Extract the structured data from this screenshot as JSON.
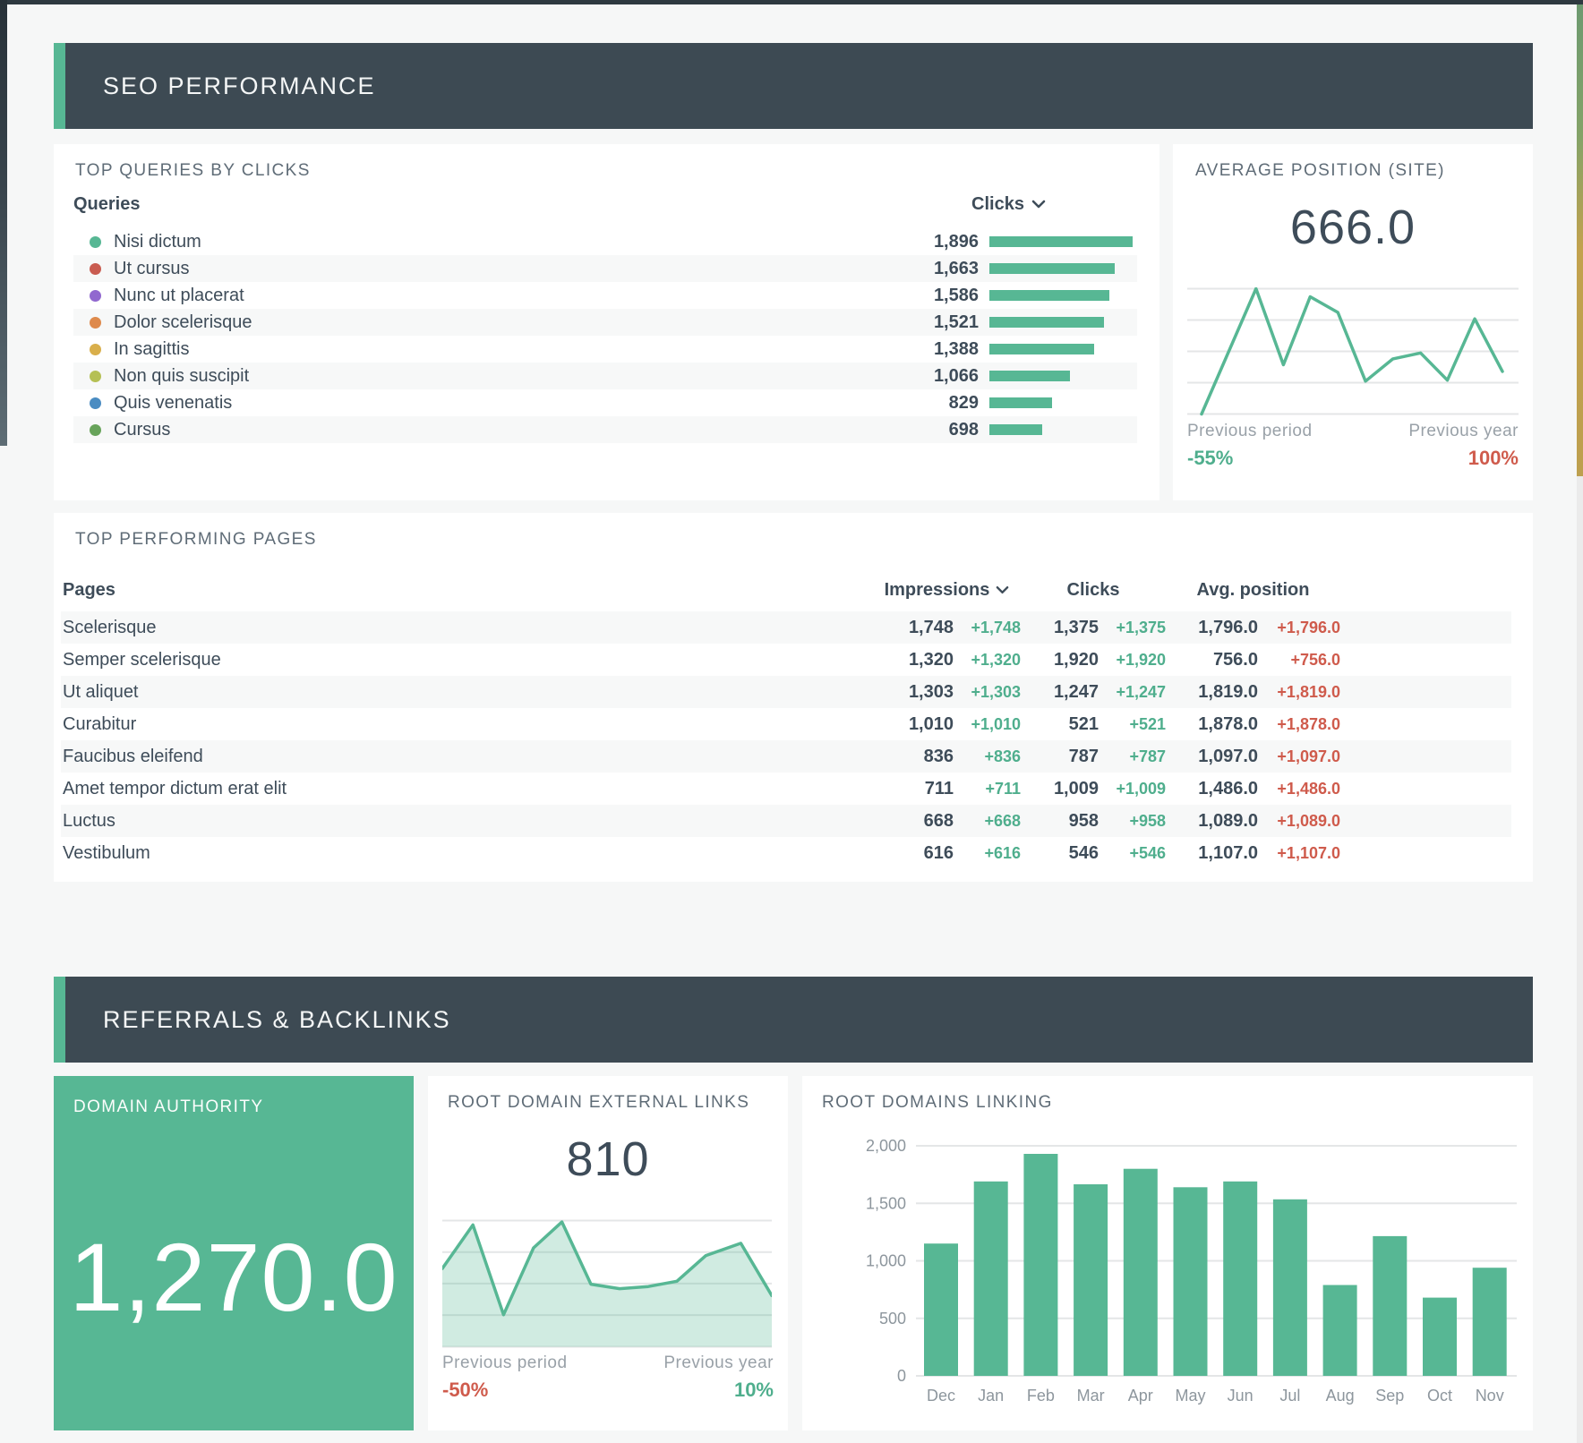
{
  "colors": {
    "accent_green": "#57b794",
    "header_dark": "#3d4a53",
    "positive_text": "#4fae8d",
    "negative_text": "#cf5b4c",
    "dark_text": "#3e4c59",
    "muted_label": "#99a1a8"
  },
  "section1": {
    "title": "SEO PERFORMANCE"
  },
  "section2": {
    "title": "REFERRALS & BACKLINKS"
  },
  "top_queries": {
    "title": "TOP QUERIES BY CLICKS",
    "col_queries": "Queries",
    "col_clicks": "Clicks",
    "max_clicks": 1896,
    "items": [
      {
        "label": "Nisi dictum",
        "clicks": "1,896",
        "value": 1896,
        "color": "#57b794"
      },
      {
        "label": "Ut cursus",
        "clicks": "1,663",
        "value": 1663,
        "color": "#c95c50"
      },
      {
        "label": "Nunc ut placerat",
        "clicks": "1,586",
        "value": 1586,
        "color": "#9168cf"
      },
      {
        "label": "Dolor scelerisque",
        "clicks": "1,521",
        "value": 1521,
        "color": "#de8a4c"
      },
      {
        "label": "In sagittis",
        "clicks": "1,388",
        "value": 1388,
        "color": "#d9af4b"
      },
      {
        "label": "Non quis suscipit",
        "clicks": "1,066",
        "value": 1066,
        "color": "#b5c054"
      },
      {
        "label": "Quis venenatis",
        "clicks": "829",
        "value": 829,
        "color": "#4a8cc2"
      },
      {
        "label": "Cursus",
        "clicks": "698",
        "value": 698,
        "color": "#67a35a"
      }
    ]
  },
  "avg_position": {
    "title": "AVERAGE POSITION (SITE)",
    "value": "666.0",
    "prev_period_label": "Previous period",
    "prev_period_value": "-55%",
    "prev_year_label": "Previous year",
    "prev_year_value": "100%"
  },
  "top_pages": {
    "title": "TOP PERFORMING PAGES",
    "col_pages": "Pages",
    "col_impressions": "Impressions",
    "col_clicks": "Clicks",
    "col_avg_position": "Avg. position",
    "rows": [
      {
        "page": "Scelerisque",
        "impressions": "1,748",
        "impressions_delta": "+1,748",
        "clicks": "1,375",
        "clicks_delta": "+1,375",
        "avg_position": "1,796.0",
        "avg_position_delta": "+1,796.0"
      },
      {
        "page": "Semper scelerisque",
        "impressions": "1,320",
        "impressions_delta": "+1,320",
        "clicks": "1,920",
        "clicks_delta": "+1,920",
        "avg_position": "756.0",
        "avg_position_delta": "+756.0"
      },
      {
        "page": "Ut aliquet",
        "impressions": "1,303",
        "impressions_delta": "+1,303",
        "clicks": "1,247",
        "clicks_delta": "+1,247",
        "avg_position": "1,819.0",
        "avg_position_delta": "+1,819.0"
      },
      {
        "page": "Curabitur",
        "impressions": "1,010",
        "impressions_delta": "+1,010",
        "clicks": "521",
        "clicks_delta": "+521",
        "avg_position": "1,878.0",
        "avg_position_delta": "+1,878.0"
      },
      {
        "page": "Faucibus eleifend",
        "impressions": "836",
        "impressions_delta": "+836",
        "clicks": "787",
        "clicks_delta": "+787",
        "avg_position": "1,097.0",
        "avg_position_delta": "+1,097.0"
      },
      {
        "page": "Amet tempor dictum erat elit",
        "impressions": "711",
        "impressions_delta": "+711",
        "clicks": "1,009",
        "clicks_delta": "+1,009",
        "avg_position": "1,486.0",
        "avg_position_delta": "+1,486.0"
      },
      {
        "page": "Luctus",
        "impressions": "668",
        "impressions_delta": "+668",
        "clicks": "958",
        "clicks_delta": "+958",
        "avg_position": "1,089.0",
        "avg_position_delta": "+1,089.0"
      },
      {
        "page": "Vestibulum",
        "impressions": "616",
        "impressions_delta": "+616",
        "clicks": "546",
        "clicks_delta": "+546",
        "avg_position": "1,107.0",
        "avg_position_delta": "+1,107.0"
      }
    ]
  },
  "domain_authority": {
    "title": "DOMAIN AUTHORITY",
    "value": "1,270.0"
  },
  "external_links": {
    "title": "ROOT DOMAIN EXTERNAL LINKS",
    "value": "810",
    "prev_period_label": "Previous period",
    "prev_period_value": "-50%",
    "prev_year_label": "Previous year",
    "prev_year_value": "10%"
  },
  "domains_linking": {
    "title": "ROOT DOMAINS LINKING"
  },
  "chart_data": [
    {
      "id": "top_queries_clicks",
      "type": "bar",
      "orientation": "horizontal",
      "title": "TOP QUERIES BY CLICKS",
      "categories": [
        "Nisi dictum",
        "Ut cursus",
        "Nunc ut placerat",
        "Dolor scelerisque",
        "In sagittis",
        "Non quis suscipit",
        "Quis venenatis",
        "Cursus"
      ],
      "values": [
        1896,
        1663,
        1586,
        1521,
        1388,
        1066,
        829,
        698
      ],
      "xlabel": "Clicks",
      "ylabel": "Queries",
      "xlim": [
        0,
        1896
      ],
      "grid": false
    },
    {
      "id": "avg_position_site",
      "type": "line",
      "title": "AVERAGE POSITION (SITE)",
      "current_value": 666.0,
      "comparisons": {
        "previous_period": "-55%",
        "previous_year": "100%"
      },
      "gridlines": 5,
      "axis_labels_hidden": true,
      "points_norm": [
        [
          0,
          0
        ],
        [
          0.181,
          1
        ],
        [
          0.272,
          0.393
        ],
        [
          0.361,
          0.936
        ],
        [
          0.453,
          0.811
        ],
        [
          0.545,
          0.262
        ],
        [
          0.636,
          0.44
        ],
        [
          0.728,
          0.487
        ],
        [
          0.817,
          0.27
        ],
        [
          0.908,
          0.759
        ],
        [
          1,
          0.34
        ]
      ]
    },
    {
      "id": "root_domain_external_links",
      "type": "area",
      "title": "ROOT DOMAIN EXTERNAL LINKS",
      "current_value": 810,
      "comparisons": {
        "previous_period": "-50%",
        "previous_year": "10%"
      },
      "gridlines": 5,
      "axis_labels_hidden": true,
      "points_norm": [
        [
          0,
          0.62
        ],
        [
          0.093,
          0.965
        ],
        [
          0.186,
          0.254
        ],
        [
          0.277,
          0.784
        ],
        [
          0.363,
          0.989
        ],
        [
          0.451,
          0.496
        ],
        [
          0.538,
          0.46
        ],
        [
          0.625,
          0.477
        ],
        [
          0.712,
          0.519
        ],
        [
          0.8,
          0.723
        ],
        [
          0.906,
          0.82
        ],
        [
          1,
          0.406
        ]
      ]
    },
    {
      "id": "root_domains_linking",
      "type": "bar",
      "title": "ROOT DOMAINS LINKING",
      "categories": [
        "Dec",
        "Jan",
        "Feb",
        "Mar",
        "Apr",
        "May",
        "Jun",
        "Jul",
        "Aug",
        "Sep",
        "Oct",
        "Nov"
      ],
      "values": [
        1150,
        1690,
        1930,
        1665,
        1800,
        1640,
        1690,
        1535,
        790,
        1215,
        680,
        940
      ],
      "ylim": [
        0,
        2000
      ],
      "yticks": [
        "0",
        "500",
        "1,000",
        "1,500",
        "2,000"
      ],
      "grid": true,
      "legend": false
    }
  ]
}
